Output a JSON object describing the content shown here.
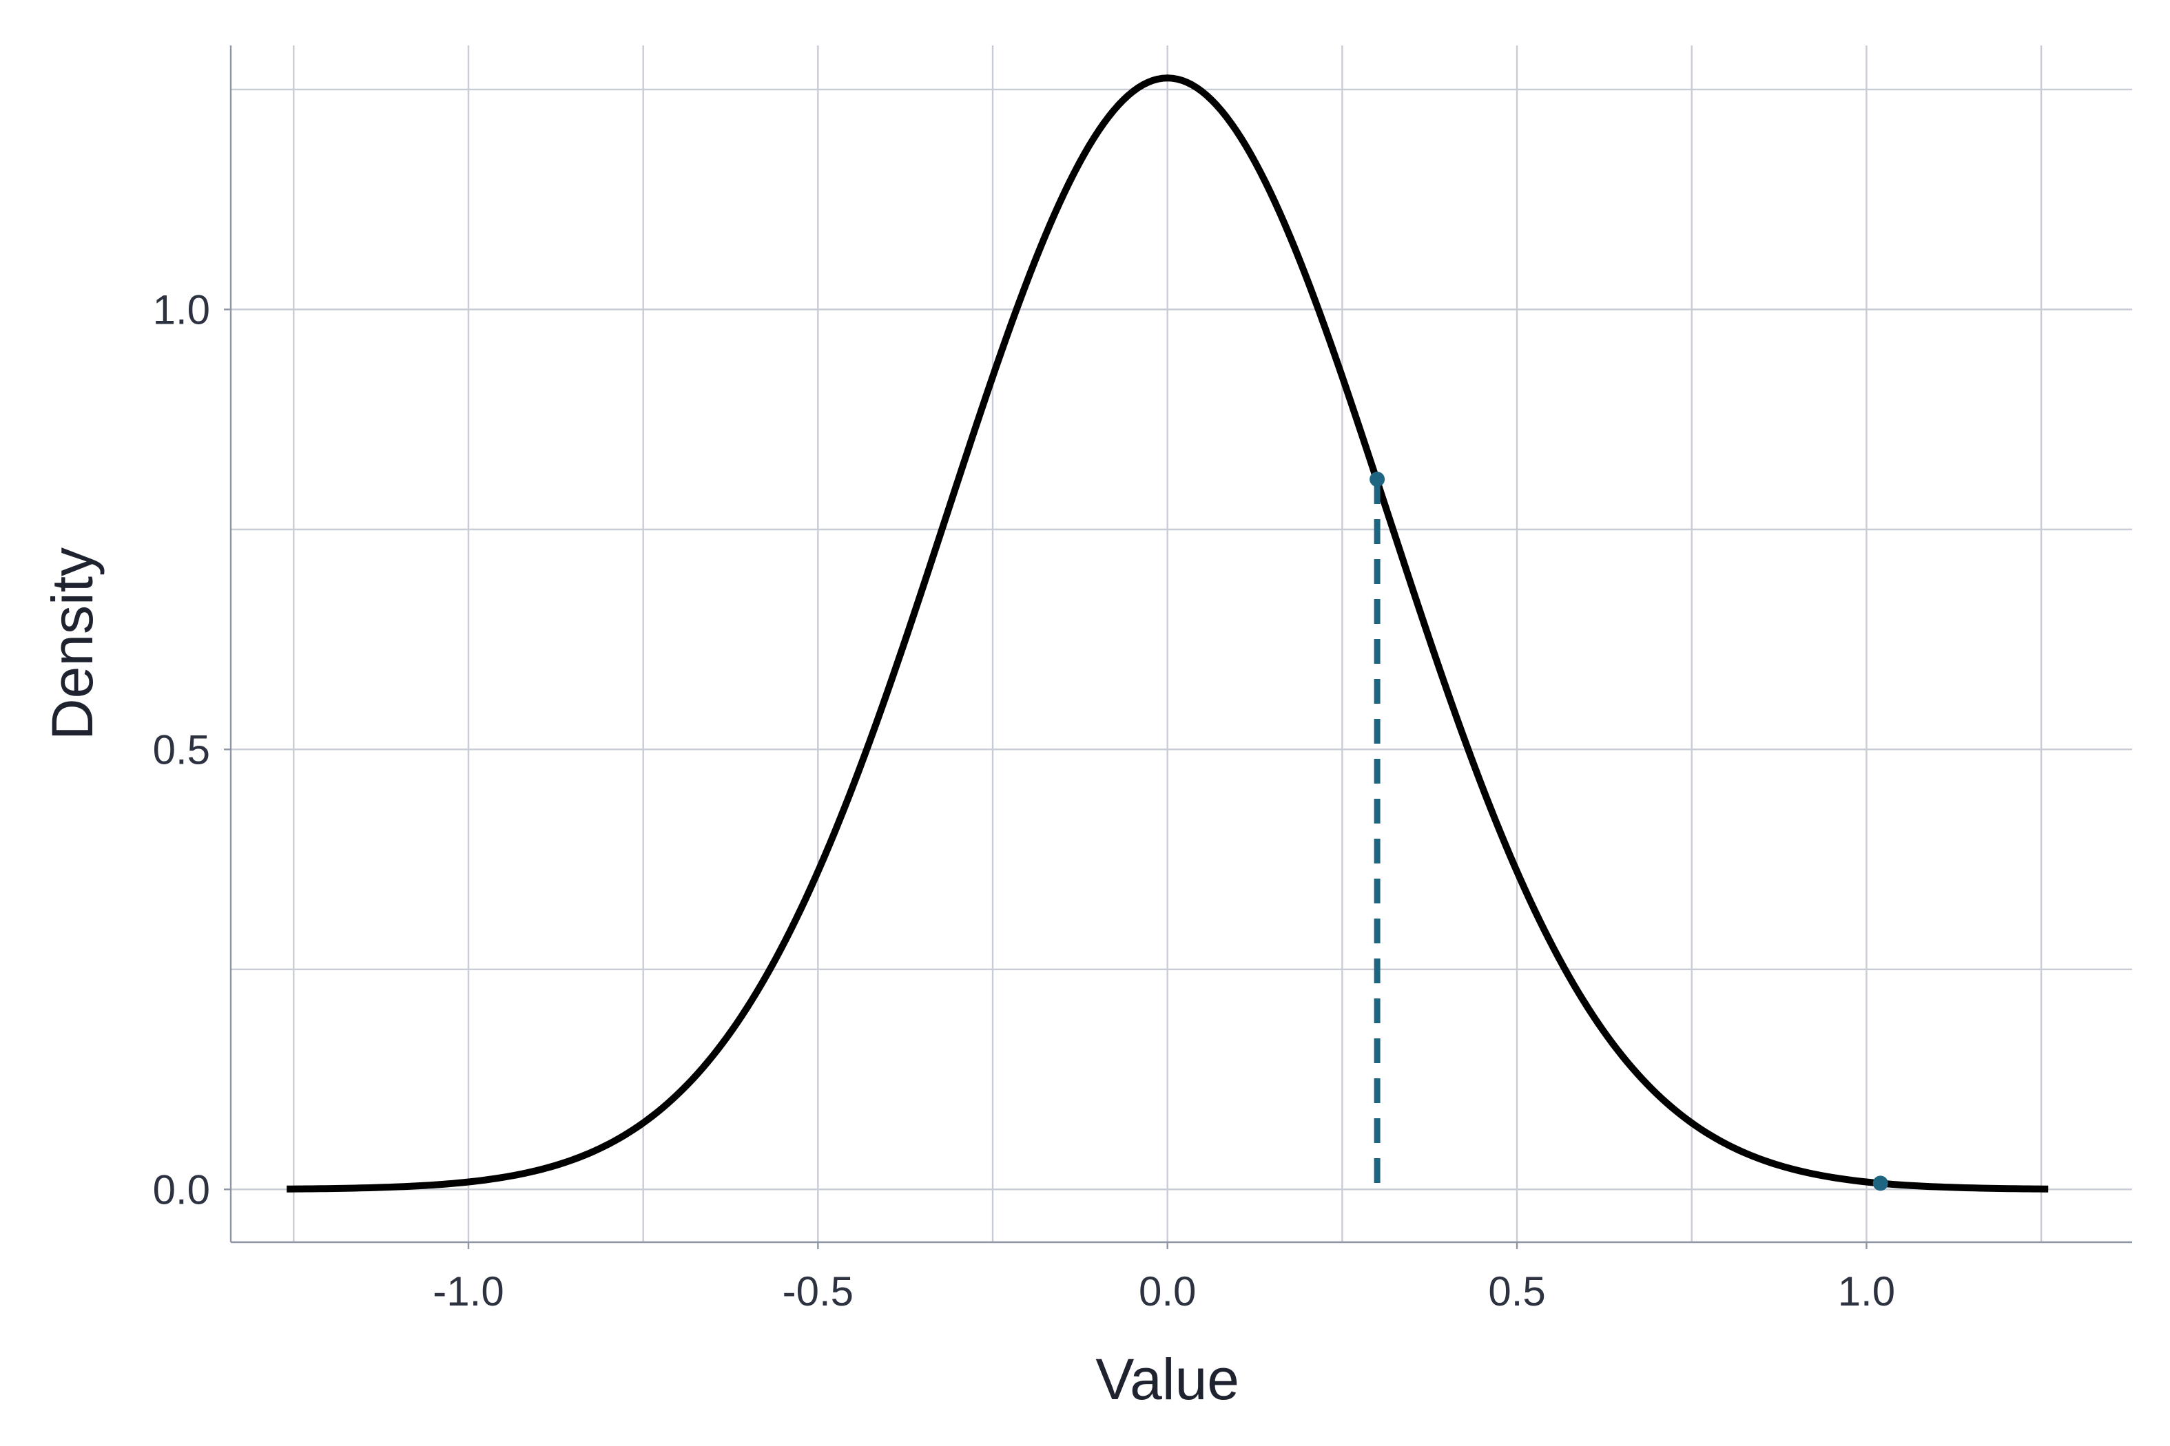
{
  "chart_data": {
    "type": "line",
    "title": "",
    "xlabel": "Value",
    "ylabel": "Density",
    "xlim": [
      -1.34,
      1.38
    ],
    "ylim": [
      -0.06,
      1.3
    ],
    "x_major_ticks": [
      -1.0,
      -0.5,
      0.0,
      0.5,
      1.0
    ],
    "x_tick_labels": [
      "-1.0",
      "-0.5",
      "0.0",
      "0.5",
      "1.0"
    ],
    "x_minor_grid": [
      -1.25,
      -0.75,
      -0.25,
      0.25,
      0.75,
      1.25
    ],
    "y_major_ticks": [
      0.0,
      0.5,
      1.0
    ],
    "y_tick_labels": [
      "0.0",
      "0.5",
      "1.0"
    ],
    "y_minor_grid": [
      0.25,
      0.75,
      1.25
    ],
    "grid": true,
    "series": [
      {
        "role": "density-curve",
        "color": "#000000",
        "x_range": [
          -1.26,
          1.26
        ],
        "mean": 0.0,
        "sd": 0.316,
        "peak": 1.263
      }
    ],
    "reference_line": {
      "x": 0.3,
      "y_top": 0.807,
      "style": "dashed",
      "color": "#1e6582"
    },
    "points": [
      {
        "x": 0.3,
        "y": 0.807,
        "color": "#1e6582"
      },
      {
        "x": 1.02,
        "y": 0.007,
        "color": "#1e6582"
      }
    ]
  }
}
